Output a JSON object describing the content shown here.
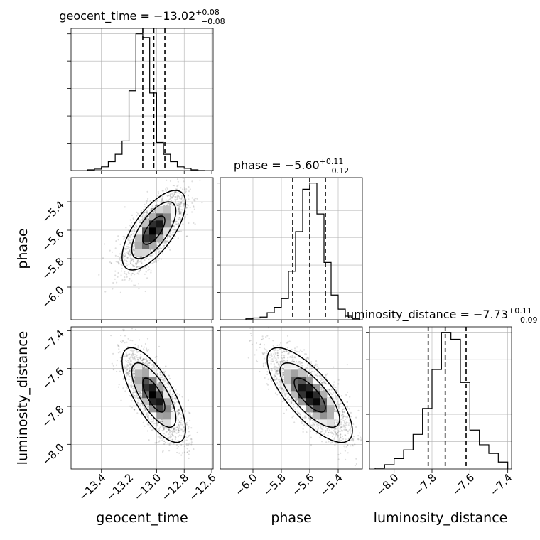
{
  "chart_data": [
    {
      "type": "histogram",
      "panel": "geocent_time",
      "title": {
        "param": "geocent_time",
        "median": "−13.02",
        "upper": "+0.08",
        "lower": "−0.08"
      },
      "xlim": [
        -13.62,
        -12.59
      ],
      "quantiles": [
        -13.1,
        -13.02,
        -12.94
      ],
      "bin_edges": [
        -13.5,
        -13.45,
        -13.4,
        -13.35,
        -13.3,
        -13.25,
        -13.2,
        -13.15,
        -13.1,
        -13.05,
        -13.0,
        -12.95,
        -12.9,
        -12.85,
        -12.8,
        -12.75,
        -12.7,
        -12.65
      ],
      "counts": [
        1,
        2,
        5,
        12,
        22,
        40,
        108,
        185,
        180,
        105,
        38,
        22,
        12,
        5,
        3,
        1,
        0
      ],
      "grid": true
    },
    {
      "type": "histogram",
      "panel": "phase",
      "title": {
        "param": "phase",
        "median": "−5.60",
        "upper": "+0.11",
        "lower": "−0.12"
      },
      "xlim": [
        -6.23,
        -5.23
      ],
      "quantiles": [
        -5.72,
        -5.6,
        -5.49
      ],
      "bin_edges": [
        -6.05,
        -6.0,
        -5.95,
        -5.9,
        -5.85,
        -5.8,
        -5.75,
        -5.7,
        -5.65,
        -5.6,
        -5.55,
        -5.5,
        -5.45,
        -5.4,
        -5.35,
        -5.3,
        -5.25
      ],
      "counts": [
        1,
        2,
        3,
        8,
        14,
        24,
        55,
        100,
        148,
        155,
        120,
        65,
        28,
        12,
        4,
        1
      ],
      "grid": true
    },
    {
      "type": "histogram",
      "panel": "luminosity_distance",
      "title": {
        "param": "luminosity_distance",
        "median": "−7.73",
        "upper": "+0.11",
        "lower": "−0.09"
      },
      "xlim": [
        -8.13,
        -7.38
      ],
      "quantiles": [
        -7.82,
        -7.73,
        -7.62
      ],
      "bin_edges": [
        -8.1,
        -8.05,
        -8.0,
        -7.95,
        -7.9,
        -7.85,
        -7.8,
        -7.75,
        -7.7,
        -7.65,
        -7.6,
        -7.55,
        -7.5,
        -7.45,
        -7.4
      ],
      "counts": [
        1,
        5,
        12,
        22,
        40,
        70,
        115,
        158,
        150,
        100,
        45,
        28,
        18,
        8
      ],
      "grid": true
    },
    {
      "type": "scatter",
      "panel": "phase_vs_geocent_time",
      "x_param": "geocent_time",
      "y_param": "phase",
      "xlim": [
        -13.62,
        -12.59
      ],
      "ylim": [
        -6.23,
        -5.23
      ],
      "center": [
        -13.02,
        -5.6
      ],
      "contours": [
        {
          "level": "1-sigma",
          "ellipse": [
            -13.02,
            -5.6,
            0.08,
            0.1,
            0.68
          ]
        },
        {
          "level": "2-sigma",
          "ellipse": [
            -13.02,
            -5.6,
            0.16,
            0.2,
            0.68
          ]
        },
        {
          "level": "3-sigma",
          "ellipse": [
            -13.02,
            -5.6,
            0.23,
            0.28,
            0.68
          ]
        }
      ]
    },
    {
      "type": "scatter",
      "panel": "luminosity_distance_vs_geocent_time",
      "x_param": "geocent_time",
      "y_param": "luminosity_distance",
      "xlim": [
        -13.62,
        -12.59
      ],
      "ylim": [
        -8.13,
        -7.38
      ],
      "center": [
        -13.02,
        -7.74
      ],
      "contours": [
        {
          "level": "1-sigma",
          "ellipse": [
            -13.02,
            -7.74,
            0.08,
            0.09,
            -0.72
          ]
        },
        {
          "level": "2-sigma",
          "ellipse": [
            -13.02,
            -7.74,
            0.16,
            0.17,
            -0.72
          ]
        },
        {
          "level": "3-sigma",
          "ellipse": [
            -13.02,
            -7.74,
            0.23,
            0.25,
            -0.72
          ]
        }
      ]
    },
    {
      "type": "scatter",
      "panel": "luminosity_distance_vs_phase",
      "x_param": "phase",
      "y_param": "luminosity_distance",
      "xlim": [
        -6.23,
        -5.23
      ],
      "ylim": [
        -8.13,
        -7.38
      ],
      "center": [
        -5.6,
        -7.74
      ],
      "contours": [
        {
          "level": "1-sigma",
          "ellipse": [
            -5.6,
            -7.74,
            0.11,
            0.09,
            -0.75
          ]
        },
        {
          "level": "2-sigma",
          "ellipse": [
            -5.6,
            -7.74,
            0.21,
            0.17,
            -0.75
          ]
        },
        {
          "level": "3-sigma",
          "ellipse": [
            -5.6,
            -7.74,
            0.3,
            0.25,
            -0.75
          ]
        }
      ]
    }
  ],
  "axes": {
    "geocent_time": {
      "label": "geocent_time",
      "ticks": [
        -13.4,
        -13.2,
        -13.0,
        -12.8,
        -12.6
      ],
      "tick_labels": [
        "−13.4",
        "−13.2",
        "−13.0",
        "−12.8",
        "−12.6"
      ]
    },
    "phase": {
      "label": "phase",
      "ticks": [
        -6.0,
        -5.8,
        -5.6,
        -5.4
      ],
      "tick_labels": [
        "−6.0",
        "−5.8",
        "−5.6",
        "−5.4"
      ]
    },
    "luminosity_distance": {
      "label": "luminosity_distance",
      "ticks": [
        -8.0,
        -7.8,
        -7.6,
        -7.4
      ],
      "tick_labels": [
        "−8.0",
        "−7.8",
        "−7.6",
        "−7.4"
      ]
    }
  },
  "colors": {
    "line": "#000000",
    "grid": "#b0b0b0",
    "scatter": "#000000"
  }
}
